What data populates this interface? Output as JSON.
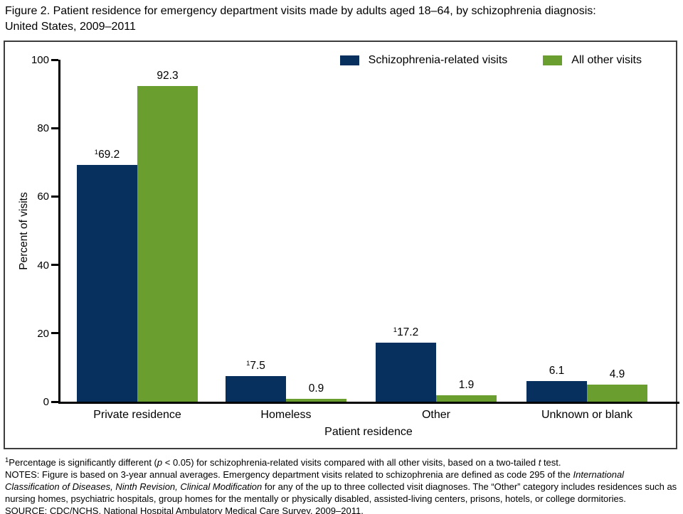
{
  "title": {
    "line1": "Figure 2. Patient residence for emergency department visits made by adults aged 18–64, by schizophrenia diagnosis:",
    "line2": "United States, 2009–2011"
  },
  "chart_data": {
    "type": "bar",
    "categories": [
      "Private residence",
      "Homeless",
      "Other",
      "Unknown or blank"
    ],
    "series": [
      {
        "name": "Schizophrenia-related visits",
        "color": "#08305e",
        "values": [
          69.2,
          7.5,
          17.2,
          6.1
        ],
        "labels": [
          "69.2",
          "7.5",
          "17.2",
          "6.1"
        ],
        "footnote_markers": [
          "1",
          "1",
          "1",
          null
        ]
      },
      {
        "name": "All other visits",
        "color": "#6a9f2f",
        "values": [
          92.3,
          0.9,
          1.9,
          4.9
        ],
        "labels": [
          "92.3",
          "0.9",
          "1.9",
          "4.9"
        ],
        "footnote_markers": [
          null,
          null,
          null,
          null
        ]
      }
    ],
    "title": "Patient residence for emergency department visits made by adults aged 18–64, by schizophrenia diagnosis: United States, 2009–2011",
    "xlabel": "Patient residence",
    "ylabel": "Percent of visits",
    "ylim": [
      0,
      100
    ],
    "yticks": [
      0,
      20,
      40,
      60,
      80,
      100
    ],
    "grid": false,
    "legend_position": "top-right"
  },
  "footnotes": [
    {
      "segments": [
        {
          "t": "1",
          "sup": true
        },
        {
          "t": "Percentage is significantly different ("
        },
        {
          "t": "p",
          "i": true
        },
        {
          "t": " < 0.05) for schizophrenia-related visits compared with all other visits, based on a two-tailed "
        },
        {
          "t": "t",
          "i": true
        },
        {
          "t": " test."
        }
      ]
    },
    {
      "segments": [
        {
          "t": "NOTES: Figure is based on 3-year annual averages. Emergency department visits related to schizophrenia are defined as code 295 of the "
        },
        {
          "t": "International Classification of Diseases, Ninth Revision, Clinical Modification",
          "i": true
        },
        {
          "t": " for any of the up to three collected visit diagnoses. The “Other” category includes residences such as nursing homes, psychiatric hospitals, group homes for the mentally or physically disabled, assisted-living centers, prisons, hotels, or college dormitories."
        }
      ]
    },
    {
      "segments": [
        {
          "t": "SOURCE: CDC/NCHS, National Hospital Ambulatory Medical Care Survey, 2009–2011."
        }
      ]
    }
  ]
}
